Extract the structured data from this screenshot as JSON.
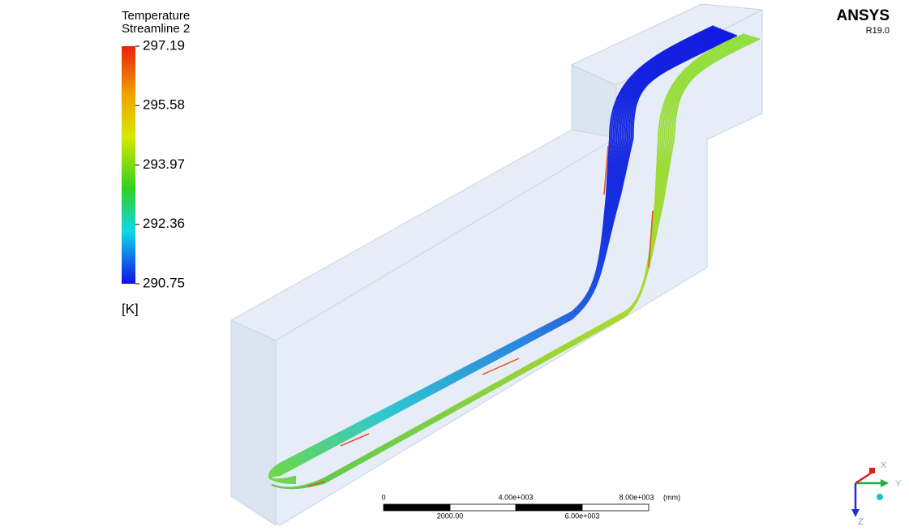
{
  "legend": {
    "title": "Temperature",
    "subtitle": "Streamline 2",
    "ticks": [
      297.19,
      295.58,
      293.97,
      292.36,
      290.75
    ],
    "unit": "[K]"
  },
  "brand": {
    "name": "ANSYS",
    "version": "R19.0"
  },
  "scale_bar": {
    "top_labels": [
      "0",
      "4.00e+003",
      "8.00e+003"
    ],
    "unit": "(mm)",
    "bottom_labels": [
      "2000.00",
      "6.00e+003"
    ]
  },
  "triad": {
    "x": "X",
    "y": "Y",
    "z": "Z"
  }
}
